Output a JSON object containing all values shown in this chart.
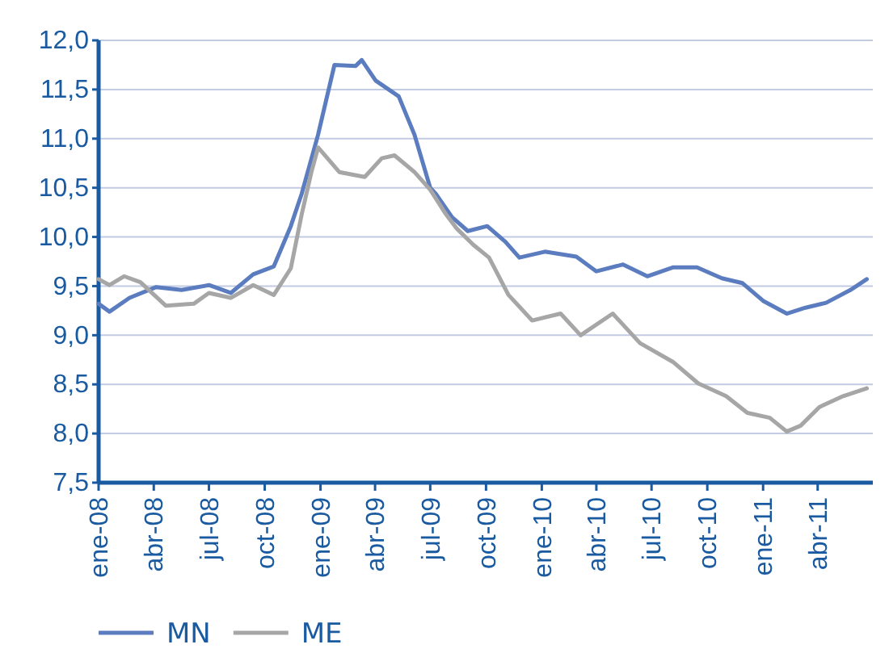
{
  "chart_data": {
    "type": "line",
    "legend": "bottom",
    "grid": "y",
    "line_style": "solid",
    "marker": "none",
    "xlim": [
      "2008-01-01",
      "2011-07-01"
    ],
    "xticks": [
      {
        "value": "2008-01-01",
        "label": "ene-08"
      },
      {
        "value": "2008-04-01",
        "label": "abr-08"
      },
      {
        "value": "2008-07-01",
        "label": "jul-08"
      },
      {
        "value": "2008-10-01",
        "label": "oct-08"
      },
      {
        "value": "2009-01-01",
        "label": "ene-09"
      },
      {
        "value": "2009-04-01",
        "label": "abr-09"
      },
      {
        "value": "2009-07-01",
        "label": "jul-09"
      },
      {
        "value": "2009-10-01",
        "label": "oct-09"
      },
      {
        "value": "2010-01-01",
        "label": "ene-10"
      },
      {
        "value": "2010-04-01",
        "label": "abr-10"
      },
      {
        "value": "2010-07-01",
        "label": "jul-10"
      },
      {
        "value": "2010-10-01",
        "label": "oct-10"
      },
      {
        "value": "2011-01-01",
        "label": "ene-11"
      },
      {
        "value": "2011-04-01",
        "label": "abr-11"
      }
    ],
    "ylim": [
      7.5,
      12
    ],
    "yticks": [
      {
        "value": 7.5,
        "label": "7,5"
      },
      {
        "value": 8,
        "label": "8,0"
      },
      {
        "value": 8.5,
        "label": "8,5"
      },
      {
        "value": 9,
        "label": "9,0"
      },
      {
        "value": 9.5,
        "label": "9,5"
      },
      {
        "value": 10,
        "label": "10,0"
      },
      {
        "value": 10.5,
        "label": "10,5"
      },
      {
        "value": 11,
        "label": "11,0"
      },
      {
        "value": 11.5,
        "label": "11,5"
      },
      {
        "value": 12,
        "label": "12,0"
      }
    ],
    "series": [
      {
        "name": "MN",
        "color": "#5b7cbf",
        "x": [
          "2008-01-01",
          "2008-01-19",
          "2008-02-21",
          "2008-04-05",
          "2008-05-17",
          "2008-07-01",
          "2008-08-06",
          "2008-09-12",
          "2008-10-16",
          "2008-11-13",
          "2008-12-01",
          "2008-12-28",
          "2009-01-24",
          "2009-02-28",
          "2009-03-10",
          "2009-04-02",
          "2009-05-10",
          "2009-06-05",
          "2009-07-01",
          "2009-07-10",
          "2009-08-06",
          "2009-09-01",
          "2009-10-03",
          "2009-11-02",
          "2009-11-25",
          "2010-01-06",
          "2010-02-27",
          "2010-04-01",
          "2010-05-15",
          "2010-06-24",
          "2010-08-05",
          "2010-09-14",
          "2010-10-25",
          "2010-11-28",
          "2011-01-01",
          "2011-02-09",
          "2011-03-12",
          "2011-04-15",
          "2011-05-25",
          "2011-06-21"
        ],
        "values": [
          9.32,
          9.24,
          9.38,
          9.49,
          9.46,
          9.51,
          9.43,
          9.62,
          9.7,
          10.11,
          10.44,
          11.04,
          11.75,
          11.74,
          11.8,
          11.59,
          11.43,
          11.04,
          10.5,
          10.44,
          10.2,
          10.06,
          10.11,
          9.95,
          9.79,
          9.85,
          9.8,
          9.65,
          9.72,
          9.6,
          9.69,
          9.69,
          9.58,
          9.53,
          9.35,
          9.22,
          9.28,
          9.33,
          9.46,
          9.57
        ]
      },
      {
        "name": "ME",
        "color": "#a6a6a6",
        "x": [
          "2008-01-01",
          "2008-01-19",
          "2008-02-12",
          "2008-03-10",
          "2008-04-21",
          "2008-06-06",
          "2008-07-01",
          "2008-08-06",
          "2008-09-12",
          "2008-10-16",
          "2008-11-13",
          "2008-12-01",
          "2008-12-17",
          "2008-12-28",
          "2009-02-01",
          "2009-03-15",
          "2009-04-12",
          "2009-05-03",
          "2009-06-05",
          "2009-07-01",
          "2009-07-27",
          "2009-08-13",
          "2009-09-10",
          "2009-10-06",
          "2009-11-07",
          "2009-12-16",
          "2010-02-01",
          "2010-03-06",
          "2010-04-28",
          "2010-06-12",
          "2010-08-05",
          "2010-09-16",
          "2010-11-01",
          "2010-12-06",
          "2011-01-12",
          "2011-02-09",
          "2011-03-04",
          "2011-04-04",
          "2011-05-13",
          "2011-06-21"
        ],
        "values": [
          9.57,
          9.51,
          9.6,
          9.54,
          9.3,
          9.32,
          9.43,
          9.38,
          9.51,
          9.41,
          9.68,
          10.23,
          10.66,
          10.91,
          10.66,
          10.61,
          10.8,
          10.83,
          10.66,
          10.48,
          10.23,
          10.09,
          9.92,
          9.79,
          9.41,
          9.15,
          9.22,
          9.0,
          9.22,
          8.92,
          8.73,
          8.51,
          8.38,
          8.21,
          8.16,
          8.02,
          8.08,
          8.27,
          8.38,
          8.46
        ]
      }
    ]
  }
}
